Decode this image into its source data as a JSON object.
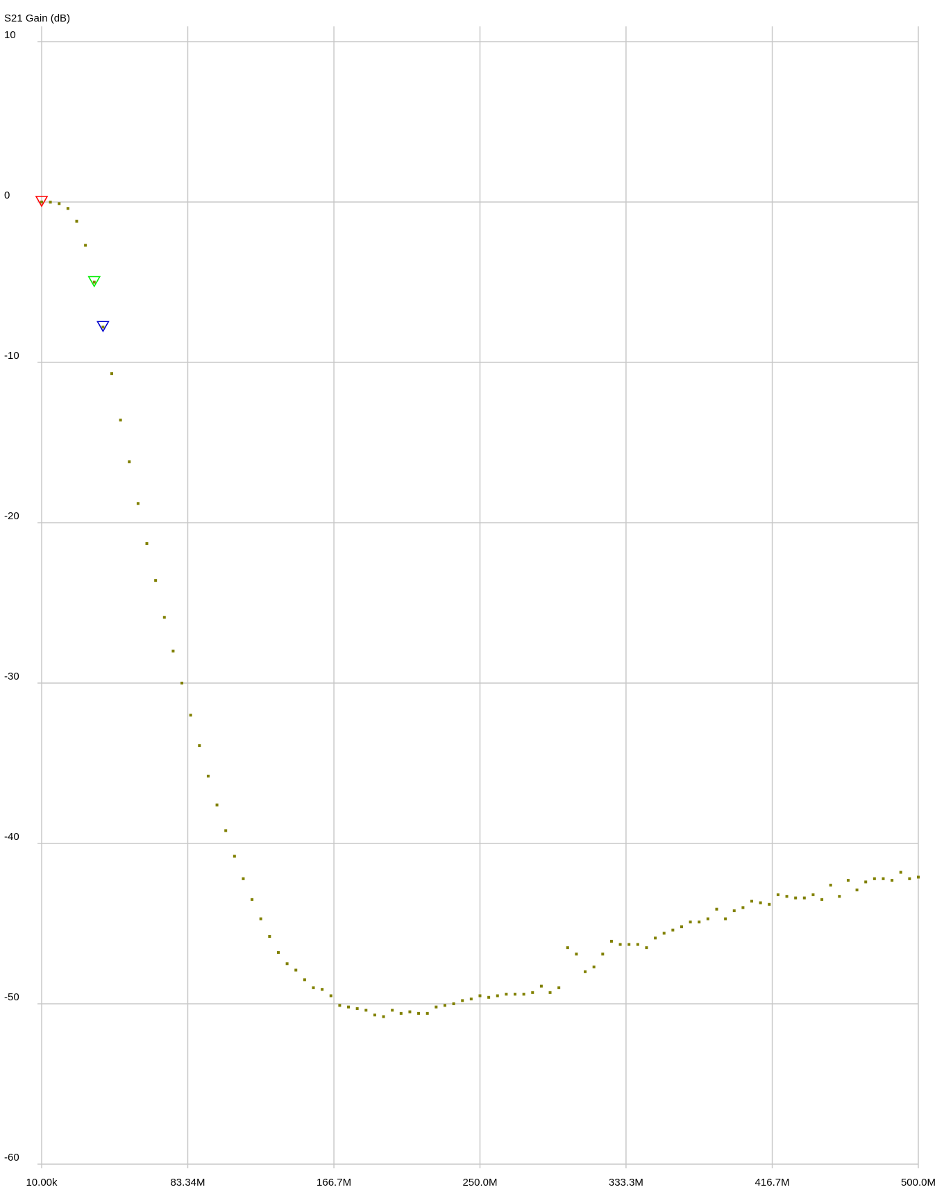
{
  "chart_data": {
    "type": "scatter",
    "title": "",
    "ylabel": "S21 Gain (dB)",
    "xlabel": "",
    "xlim": [
      0.01,
      500.0
    ],
    "ylim": [
      -60,
      10
    ],
    "grid": true,
    "x_ticks": [
      {
        "value": 0.01,
        "label": "10.00k"
      },
      {
        "value": 83.34,
        "label": "83.34M"
      },
      {
        "value": 166.7,
        "label": "166.7M"
      },
      {
        "value": 250.0,
        "label": "250.0M"
      },
      {
        "value": 333.3,
        "label": "333.3M"
      },
      {
        "value": 416.7,
        "label": "416.7M"
      },
      {
        "value": 500.0,
        "label": "500.0M"
      }
    ],
    "y_ticks": [
      {
        "value": 10,
        "label": "10"
      },
      {
        "value": 0,
        "label": "0"
      },
      {
        "value": -10,
        "label": "-10"
      },
      {
        "value": -20,
        "label": "-20"
      },
      {
        "value": -30,
        "label": "-30"
      },
      {
        "value": -40,
        "label": "-40"
      },
      {
        "value": -50,
        "label": "-50"
      },
      {
        "value": -60,
        "label": "-60"
      }
    ],
    "series": [
      {
        "color": "#808000",
        "x": [
          0.01,
          5,
          10,
          15,
          20,
          25,
          30,
          35,
          40,
          45,
          50,
          55,
          60,
          65,
          70,
          75,
          80,
          85,
          90,
          95,
          100,
          105,
          110,
          115,
          120,
          125,
          130,
          135,
          140,
          145,
          150,
          155,
          160,
          165,
          170,
          175,
          180,
          185,
          190,
          195,
          200,
          205,
          210,
          215,
          220,
          225,
          230,
          235,
          240,
          245,
          250,
          255,
          260,
          265,
          270,
          275,
          280,
          285,
          290,
          295,
          300,
          305,
          310,
          315,
          320,
          325,
          330,
          335,
          340,
          345,
          350,
          355,
          360,
          365,
          370,
          375,
          380,
          385,
          390,
          395,
          400,
          405,
          410,
          415,
          420,
          425,
          430,
          435,
          440,
          445,
          450,
          455,
          460,
          465,
          470,
          475,
          480,
          485,
          490,
          495,
          500
        ],
        "y": [
          0.0,
          -0.01,
          -0.1,
          -0.4,
          -1.2,
          -2.7,
          -5.0,
          -7.8,
          -10.7,
          -13.6,
          -16.2,
          -18.8,
          -21.3,
          -23.6,
          -25.9,
          -28.0,
          -30.0,
          -32.0,
          -33.9,
          -35.8,
          -37.6,
          -39.2,
          -40.8,
          -42.2,
          -43.5,
          -44.7,
          -45.8,
          -46.8,
          -47.5,
          -47.9,
          -48.5,
          -49.0,
          -49.1,
          -49.5,
          -50.1,
          -50.2,
          -50.3,
          -50.4,
          -50.7,
          -50.8,
          -50.4,
          -50.6,
          -50.5,
          -50.6,
          -50.6,
          -50.2,
          -50.1,
          -50.0,
          -49.8,
          -49.7,
          -49.5,
          -49.6,
          -49.5,
          -49.4,
          -49.4,
          -49.4,
          -49.3,
          -48.9,
          -49.3,
          -49.0,
          -46.5,
          -46.9,
          -48.0,
          -47.7,
          -46.9,
          -46.1,
          -46.3,
          -46.3,
          -46.3,
          -46.5,
          -45.9,
          -45.6,
          -45.4,
          -45.2,
          -44.9,
          -44.9,
          -44.7,
          -44.1,
          -44.7,
          -44.2,
          -44.0,
          -43.6,
          -43.7,
          -43.8,
          -43.2,
          -43.3,
          -43.4,
          -43.4,
          -43.2,
          -43.5,
          -42.6,
          -43.3,
          -42.3,
          -42.9,
          -42.4,
          -42.2,
          -42.2,
          -42.3,
          -41.8,
          -42.2,
          -42.1
        ]
      }
    ],
    "markers": [
      {
        "x": 0.01,
        "y": 0.0,
        "color": "#ff0000"
      },
      {
        "x": 30.0,
        "y": -5.0,
        "color": "#00ee00"
      },
      {
        "x": 35.0,
        "y": -7.8,
        "color": "#0000cc"
      }
    ]
  }
}
